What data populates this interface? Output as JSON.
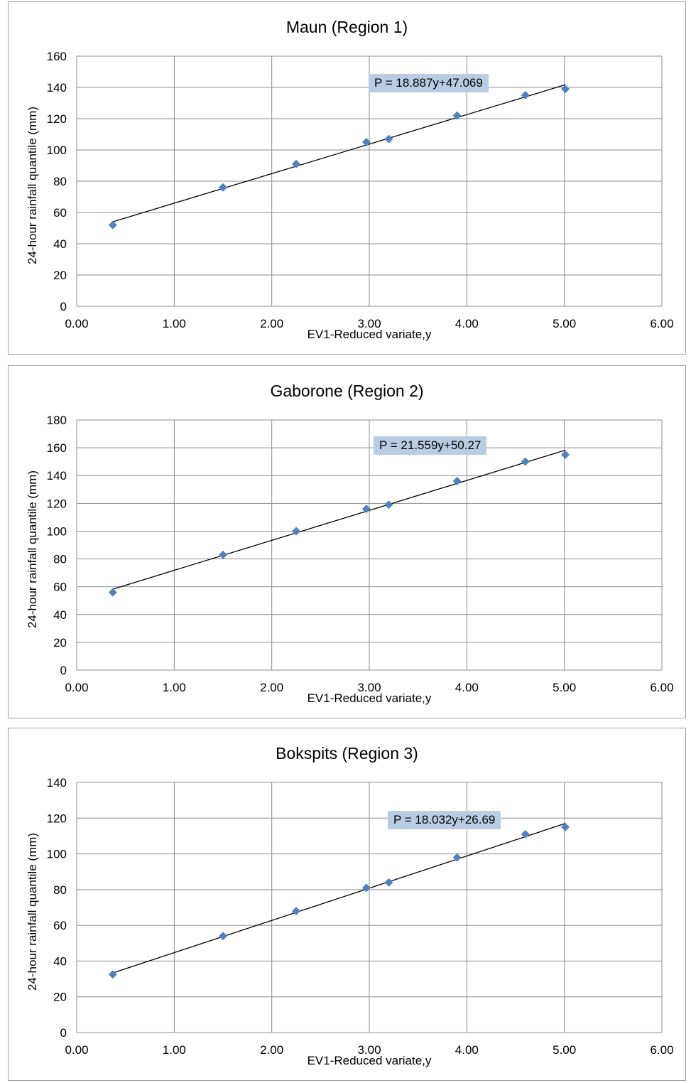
{
  "chart_data": [
    {
      "type": "scatter",
      "title": "Maun (Region 1)",
      "xlabel": "EV1-Reduced variate,y",
      "ylabel": "24-hour rainfall quantile (mm)",
      "xlim": [
        0,
        6
      ],
      "ylim": [
        0,
        160
      ],
      "xticks": [
        "0.00",
        "1.00",
        "2.00",
        "3.00",
        "4.00",
        "5.00",
        "6.00"
      ],
      "yticks": [
        "0",
        "20",
        "40",
        "60",
        "80",
        "100",
        "120",
        "140",
        "160"
      ],
      "grid": true,
      "series": [
        {
          "x": [
            0.37,
            1.5,
            2.25,
            2.97,
            3.2,
            3.9,
            4.6,
            5.01
          ],
          "y": [
            52,
            76,
            91,
            105,
            107,
            122,
            135,
            139
          ]
        }
      ],
      "trendline": {
        "slope": 18.887,
        "intercept": 47.069,
        "x_range": [
          0.37,
          5.01
        ]
      },
      "equation": "P = 18.887y+47.069",
      "colors": {
        "marker": "#4f81bd",
        "line": "#000000",
        "label_bg": "#b8cce4"
      }
    },
    {
      "type": "scatter",
      "title": "Gaborone (Region 2)",
      "xlabel": "EV1-Reduced variate,y",
      "ylabel": "24-hour rainfall quantile (mm)",
      "xlim": [
        0,
        6
      ],
      "ylim": [
        0,
        180
      ],
      "xticks": [
        "0.00",
        "1.00",
        "2.00",
        "3.00",
        "4.00",
        "5.00",
        "6.00"
      ],
      "yticks": [
        "0",
        "20",
        "40",
        "60",
        "80",
        "100",
        "120",
        "140",
        "160",
        "180"
      ],
      "grid": true,
      "series": [
        {
          "x": [
            0.37,
            1.5,
            2.25,
            2.97,
            3.2,
            3.9,
            4.6,
            5.01
          ],
          "y": [
            56,
            83,
            100,
            116,
            119,
            136,
            150,
            155
          ]
        }
      ],
      "trendline": {
        "slope": 21.559,
        "intercept": 50.27,
        "x_range": [
          0.37,
          5.01
        ]
      },
      "equation": "P = 21.559y+50.27",
      "colors": {
        "marker": "#4f81bd",
        "line": "#000000",
        "label_bg": "#b8cce4"
      }
    },
    {
      "type": "scatter",
      "title": "Bokspits (Region 3)",
      "xlabel": "EV1-Reduced variate,y",
      "ylabel": "24-hour rainfall quantile (mm)",
      "xlim": [
        0,
        6
      ],
      "ylim": [
        0,
        140
      ],
      "xticks": [
        "0.00",
        "1.00",
        "2.00",
        "3.00",
        "4.00",
        "5.00",
        "6.00"
      ],
      "yticks": [
        "0",
        "20",
        "40",
        "60",
        "80",
        "100",
        "120",
        "140"
      ],
      "grid": true,
      "series": [
        {
          "x": [
            0.37,
            1.5,
            2.25,
            2.97,
            3.2,
            3.9,
            4.6,
            5.01
          ],
          "y": [
            32.5,
            54,
            68,
            81,
            84,
            98,
            111,
            115
          ]
        }
      ],
      "trendline": {
        "slope": 18.032,
        "intercept": 26.69,
        "x_range": [
          0.37,
          5.01
        ]
      },
      "equation": "P = 18.032y+26.69",
      "colors": {
        "marker": "#4f81bd",
        "line": "#000000",
        "label_bg": "#b8cce4"
      }
    }
  ]
}
